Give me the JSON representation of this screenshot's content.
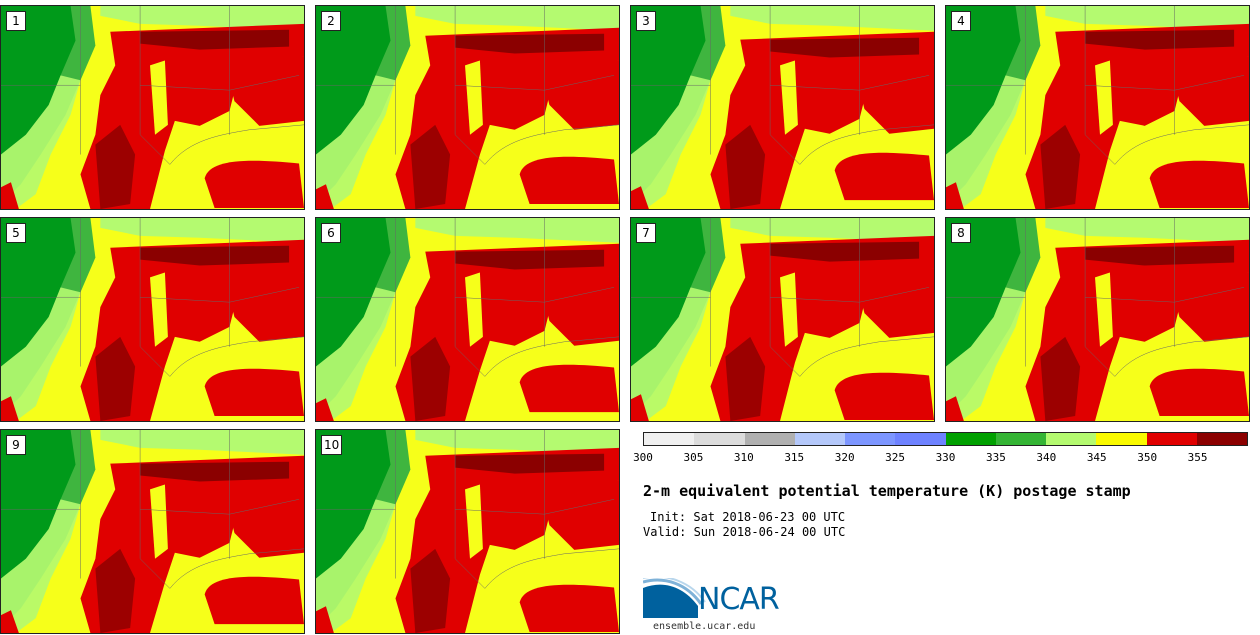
{
  "panels": [
    {
      "label": "1"
    },
    {
      "label": "2"
    },
    {
      "label": "3"
    },
    {
      "label": "4"
    },
    {
      "label": "5"
    },
    {
      "label": "6"
    },
    {
      "label": "7"
    },
    {
      "label": "8"
    },
    {
      "label": "9"
    },
    {
      "label": "10"
    }
  ],
  "colorbar": {
    "colors": [
      "#f0f0f0",
      "#dcdcdc",
      "#b0b0b0",
      "#b4c8fa",
      "#7d96ff",
      "#6e82ff",
      "#00a000",
      "#34b434",
      "#b4fa70",
      "#fafa00",
      "#e00000",
      "#8b0000"
    ],
    "ticks": [
      "300",
      "305",
      "310",
      "315",
      "320",
      "325",
      "330",
      "335",
      "340",
      "345",
      "350",
      "355"
    ]
  },
  "title": "2-m equivalent potential temperature (K) postage stamp",
  "init": "Init: Sat 2018-06-23 00 UTC",
  "valid": "Valid: Sun 2018-06-24 00 UTC",
  "logo": {
    "text": "NCAR",
    "url": "ensemble.ucar.edu"
  },
  "palette": {
    "dark_green": "#009a1a",
    "mid_green": "#3fb53f",
    "light_green": "#b4fa70",
    "yellow": "#f6ff1a",
    "red": "#e00000",
    "dark_red": "#8b0000"
  }
}
